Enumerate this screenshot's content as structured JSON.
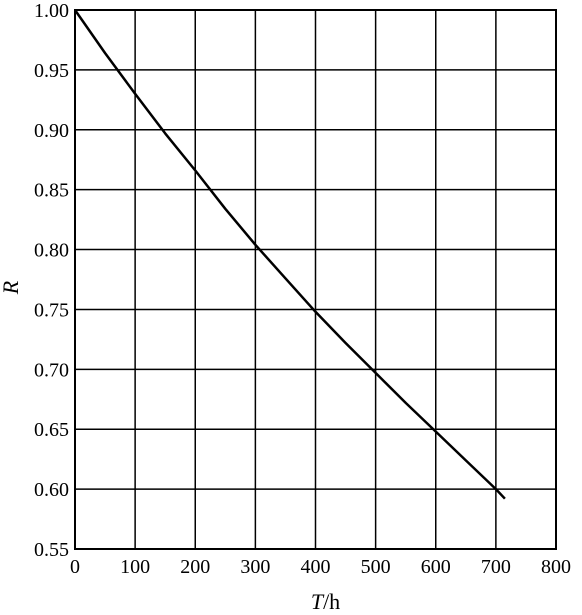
{
  "chart_data": {
    "type": "line",
    "title": "",
    "xlabel": "T",
    "xunit": "/h",
    "ylabel": "R",
    "xlim": [
      0,
      800
    ],
    "ylim": [
      0.55,
      1.0
    ],
    "grid": true,
    "x_ticks": [
      "0",
      "100",
      "200",
      "300",
      "400",
      "500",
      "600",
      "700",
      "800"
    ],
    "y_ticks": [
      "0.55",
      "0.60",
      "0.65",
      "0.70",
      "0.75",
      "0.80",
      "0.85",
      "0.90",
      "0.95",
      "1.00"
    ],
    "series": [
      {
        "x": [
          0,
          50,
          100,
          150,
          200,
          250,
          300,
          350,
          400,
          450,
          500,
          550,
          600,
          650,
          700,
          715
        ],
        "values": [
          1.0,
          0.964,
          0.93,
          0.897,
          0.866,
          0.834,
          0.804,
          0.776,
          0.748,
          0.722,
          0.697,
          0.672,
          0.648,
          0.624,
          0.6,
          0.592
        ],
        "color": "#000000"
      }
    ]
  }
}
